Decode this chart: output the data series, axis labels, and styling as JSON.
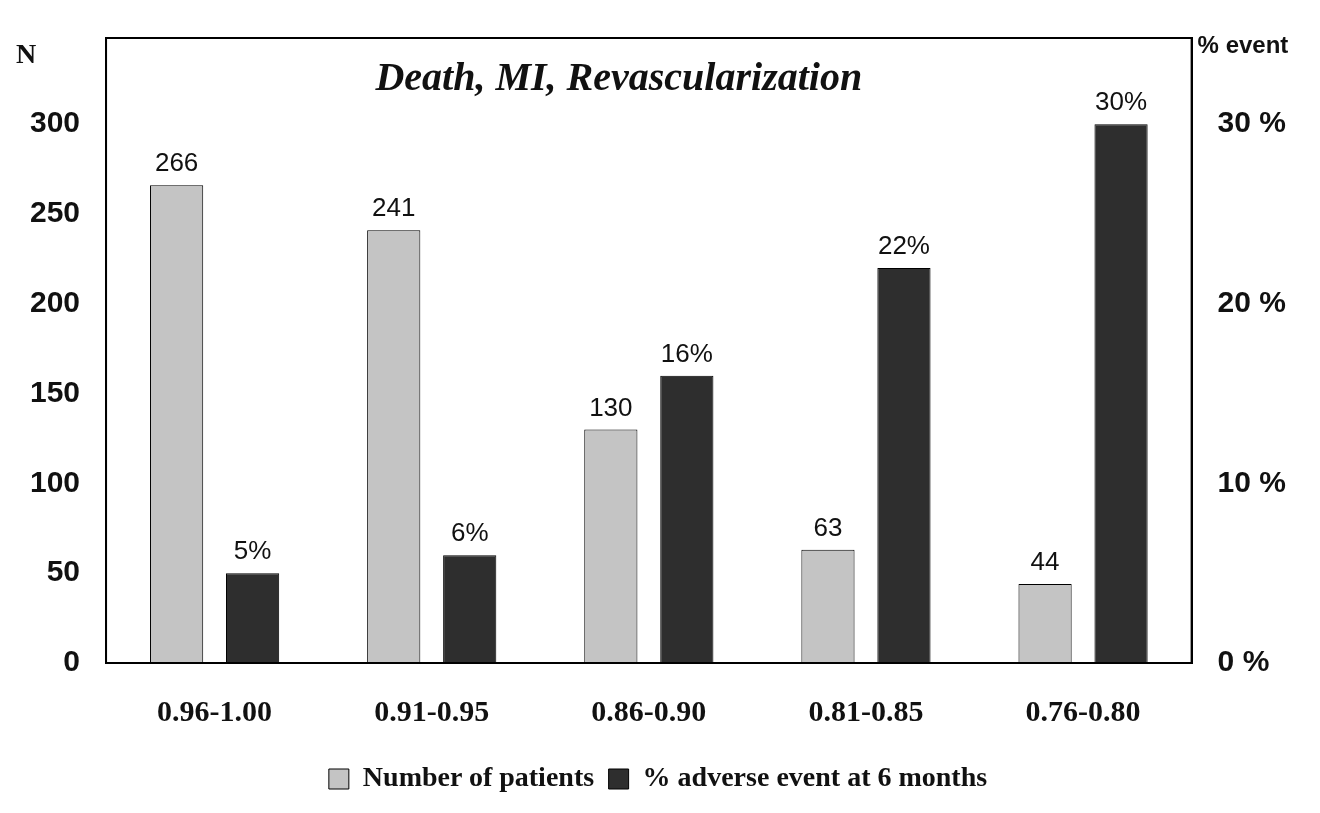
{
  "chart_data": {
    "type": "bar",
    "title": "Death, MI, Revascularization",
    "ylabel": "N",
    "y2label": "% event",
    "categories": [
      "0.96-1.00",
      "0.91-0.95",
      "0.86-0.90",
      "0.81-0.85",
      "0.76-0.80"
    ],
    "series": [
      {
        "name": "Number of patients",
        "color": "#c4c4c4",
        "values": [
          266,
          241,
          130,
          63,
          44
        ],
        "value_labels": [
          "266",
          "241",
          "130",
          "63",
          "44"
        ]
      },
      {
        "name": "% adverse event at 6 months",
        "color": "#2e2e2e",
        "axis": "y2",
        "values": [
          5,
          6,
          16,
          22,
          30
        ],
        "value_labels": [
          "5%",
          "6%",
          "16%",
          "22%",
          "30%"
        ]
      }
    ],
    "ylim": [
      0,
      348
    ],
    "yticks": [
      0,
      50,
      100,
      150,
      200,
      250,
      300
    ],
    "y2lim": [
      0,
      34.8
    ],
    "y2ticks": [
      {
        "value": 0,
        "label": "0 %"
      },
      {
        "value": 10,
        "label": "10 %"
      },
      {
        "value": 20,
        "label": "20 %"
      },
      {
        "value": 30,
        "label": "30 %"
      }
    ],
    "grid": false,
    "legend": "bottom"
  }
}
